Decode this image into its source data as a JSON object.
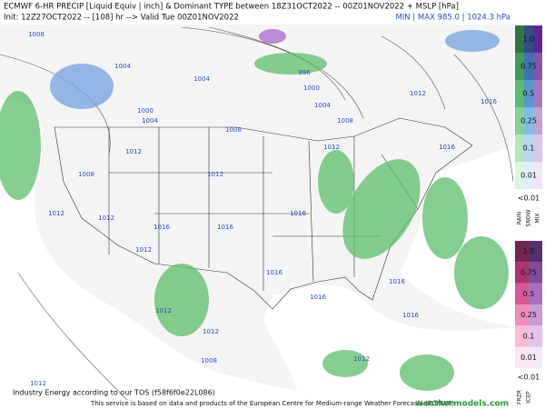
{
  "header": {
    "line1": "ECMWF 6-HR PRECIP [Liquid Equiv | inch] & Dominant TYPE between 18Z31OCT2022 -- 00Z01NOV2022 + MSLP [hPa]",
    "line2": "Init: 12Z27OCT2022 -- [108] hr --> Valid Tue 00Z01NOV2022",
    "minmax": "MIN | MAX 985.0 | 1024.3 hPa"
  },
  "legend": {
    "upper": {
      "labels": [
        "1.0",
        "0.75",
        "0.5",
        "0.25",
        "0.1",
        "0.01"
      ],
      "below": "<0.01",
      "types": [
        "RAIN",
        "SNOW",
        "MIX"
      ]
    },
    "lower": {
      "labels": [
        "1.0",
        "0.75",
        "0.5",
        "0.25",
        "0.1",
        "0.01"
      ],
      "below": "<0.01",
      "types": [
        "FRZR",
        "ICEP"
      ]
    }
  },
  "map": {
    "isobar_labels": [
      "1008",
      "1004",
      "1000",
      "1004",
      "1004",
      "996",
      "1000",
      "1004",
      "1008",
      "1012",
      "1016",
      "1008",
      "1012",
      "1016",
      "1012",
      "1008",
      "1012",
      "1012",
      "1012",
      "1016",
      "1016",
      "1016",
      "1012",
      "1016",
      "1016",
      "1016",
      "1012",
      "1012",
      "1016",
      "1012",
      "1012",
      "1008"
    ]
  },
  "footer": {
    "credit": "Industry Energy according to our TOS (f58f6f0e22L086)",
    "source": "This service is based on data and products of the European Centre for Medium-range Weather Forecasts (ECMWF)",
    "brand": "weathermodels.com"
  }
}
